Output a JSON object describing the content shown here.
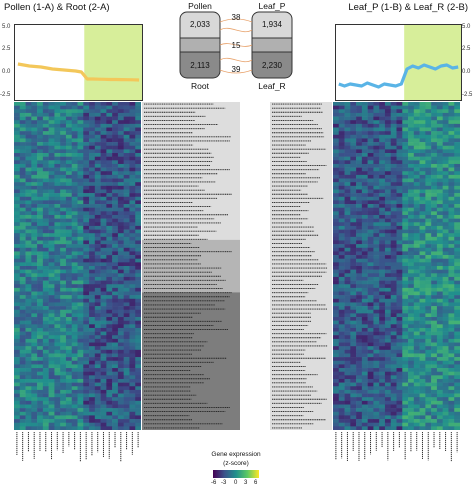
{
  "titles": {
    "left": "Pollen (1-A) & Root (2-A)",
    "right": "Leaf_P (1-B) & Leaf_R (2-B)"
  },
  "venn": {
    "labels": {
      "top_left": "Pollen",
      "bottom_left": "Root",
      "top_right": "Leaf_P",
      "bottom_right": "Leaf_R"
    },
    "counts": {
      "pollen": "2,033",
      "root": "2,113",
      "leafp": "1,934",
      "leafr": "2,230",
      "top_overlap": "38",
      "mid_overlap": "15",
      "bottom_overlap": "39"
    }
  },
  "line_axis": {
    "ticks": [
      "5.0",
      "2.5",
      "0.0",
      "-2.5"
    ]
  },
  "legend": {
    "title_line1": "Gene expression",
    "title_line2": "(z-score)",
    "ticks": [
      "-6",
      "-3",
      "0",
      "3",
      "6"
    ]
  },
  "colors": {
    "left_line": "#f3c75a",
    "right_line": "#5ab4e6",
    "highlight": "#d7ee9a",
    "band_light": "#dddddd",
    "band_mid": "#b5b5b5",
    "band_dark": "#7d7d7d"
  },
  "heatmap": {
    "palette": [
      "#440154",
      "#3b528b",
      "#21908d",
      "#5dc963",
      "#fde725"
    ]
  },
  "chart_data": [
    {
      "type": "line",
      "series": [
        {
          "values": [
            1.1,
            1.0,
            0.9,
            0.85,
            0.8,
            0.7,
            0.6,
            0.55,
            0.5,
            0.45,
            0.4,
            0.3,
            -0.4,
            -0.4,
            -0.42,
            -0.43,
            -0.45,
            -0.45,
            -0.46,
            -0.47,
            -0.48,
            -0.5
          ]
        }
      ],
      "ylim": [
        -2.5,
        5.0
      ],
      "highlight_from_index": 12,
      "yticks": [
        "5.0",
        "2.5",
        "0.0",
        "-2.5"
      ]
    },
    {
      "type": "line",
      "series": [
        {
          "values": [
            -0.9,
            -1.1,
            -0.9,
            -1.0,
            -1.1,
            -0.8,
            -1.0,
            -1.2,
            -0.9,
            -1.0,
            -1.1,
            -0.9,
            0.6,
            0.9,
            0.7,
            1.0,
            0.8,
            0.6,
            0.9,
            1.0,
            0.7,
            0.8
          ]
        }
      ],
      "ylim": [
        -2.5,
        5.0
      ],
      "highlight_from_index": 12,
      "yticks": [
        "5.0",
        "2.5",
        "0.0",
        "-2.5"
      ]
    }
  ]
}
